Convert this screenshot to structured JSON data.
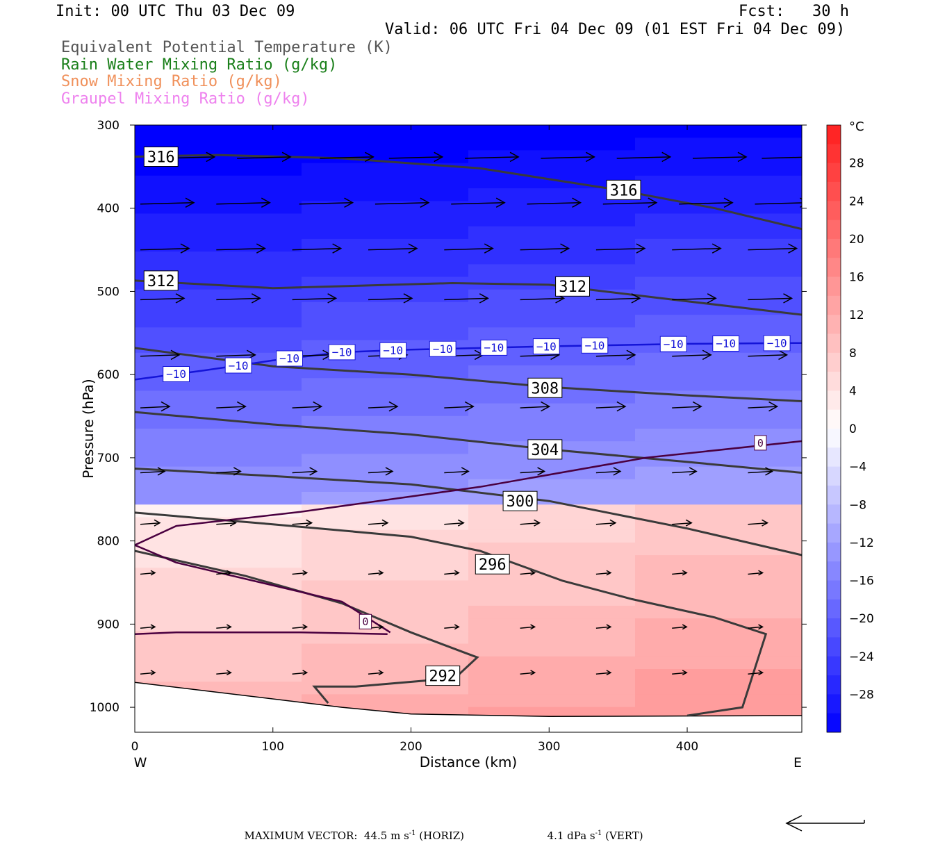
{
  "header": {
    "init": "Init: 00 UTC Thu 03 Dec 09",
    "fcst": "Fcst:   30 h",
    "valid": "Valid: 06 UTC Fri 04 Dec 09 (01 EST Fri 04 Dec 09)"
  },
  "legend": [
    {
      "label": "Equivalent Potential Temperature (K)",
      "color": "#555555"
    },
    {
      "label": "Rain Water Mixing Ratio (g/kg)",
      "color": "#1a7f1a"
    },
    {
      "label": "Snow Mixing Ratio (g/kg)",
      "color": "#f0905a"
    },
    {
      "label": "Graupel Mixing Ratio (g/kg)",
      "color": "#ee82ee"
    }
  ],
  "footer": {
    "max_vector_label": "MAXIMUM VECTOR:  44.5 m s",
    "horiz_suffix": " (HORIZ)",
    "vert_value": "4.1 dPa s",
    "vert_suffix": " (VERT)",
    "exp": "-1"
  },
  "chart_data": {
    "type": "heatmap",
    "xlabel": "Distance (km)",
    "ylabel": "Pressure (hPa)",
    "x_ticks": [
      0,
      100,
      200,
      300,
      400
    ],
    "y_ticks": [
      300,
      400,
      500,
      600,
      700,
      800,
      900,
      1000
    ],
    "xlim": [
      0,
      483
    ],
    "ylim": [
      300,
      1030
    ],
    "y_inverted": true,
    "x_end_labels": {
      "left": "W",
      "right": "E"
    },
    "colorbar": {
      "unit": "°C",
      "tick_labels": [
        "28",
        "24",
        "20",
        "16",
        "12",
        "8",
        "4",
        "0",
        "−4",
        "−8",
        "−12",
        "−16",
        "−20",
        "−24",
        "−28"
      ],
      "range": [
        -32,
        32
      ]
    },
    "theta_e_contours": [
      {
        "label": "316",
        "points": [
          [
            0,
            338
          ],
          [
            60,
            336
          ],
          [
            150,
            340
          ],
          [
            250,
            352
          ],
          [
            350,
            378
          ],
          [
            420,
            400
          ],
          [
            483,
            425
          ]
        ]
      },
      {
        "label": "312",
        "points": [
          [
            0,
            487
          ],
          [
            100,
            496
          ],
          [
            230,
            490
          ],
          [
            300,
            492
          ],
          [
            380,
            508
          ],
          [
            483,
            528
          ]
        ]
      },
      {
        "label": "308",
        "points": [
          [
            0,
            568
          ],
          [
            100,
            590
          ],
          [
            200,
            600
          ],
          [
            300,
            615
          ],
          [
            400,
            625
          ],
          [
            483,
            632
          ]
        ]
      },
      {
        "label": "304",
        "points": [
          [
            0,
            645
          ],
          [
            100,
            660
          ],
          [
            200,
            672
          ],
          [
            300,
            690
          ],
          [
            400,
            705
          ],
          [
            483,
            718
          ]
        ]
      },
      {
        "label": "300",
        "points": [
          [
            0,
            713
          ],
          [
            100,
            722
          ],
          [
            200,
            732
          ],
          [
            300,
            752
          ],
          [
            400,
            785
          ],
          [
            483,
            817
          ]
        ]
      },
      {
        "label": "296",
        "points": [
          [
            0,
            766
          ],
          [
            100,
            780
          ],
          [
            200,
            795
          ],
          [
            250,
            812
          ],
          [
            310,
            848
          ],
          [
            360,
            870
          ],
          [
            420,
            892
          ],
          [
            457,
            912
          ],
          [
            440,
            1000
          ],
          [
            400,
            1010
          ]
        ]
      },
      {
        "label": "292",
        "points": [
          [
            0,
            812
          ],
          [
            80,
            842
          ],
          [
            150,
            875
          ],
          [
            200,
            910
          ],
          [
            240,
            935
          ],
          [
            248,
            940
          ],
          [
            235,
            960
          ],
          [
            210,
            968
          ],
          [
            160,
            975
          ],
          [
            130,
            975
          ],
          [
            140,
            995
          ]
        ]
      }
    ],
    "zero_isotherm": {
      "label": "0",
      "points": [
        [
          183,
          912
        ],
        [
          120,
          910
        ],
        [
          30,
          910
        ],
        [
          0,
          912
        ]
      ],
      "points2": [
        [
          0,
          805
        ],
        [
          30,
          826
        ],
        [
          150,
          873
        ],
        [
          185,
          910
        ]
      ],
      "points3": [
        [
          0,
          805
        ],
        [
          30,
          782
        ],
        [
          120,
          765
        ],
        [
          250,
          735
        ],
        [
          370,
          700
        ],
        [
          483,
          680
        ]
      ]
    },
    "minus10_isotherm": {
      "label": "−10",
      "points": [
        [
          0,
          606
        ],
        [
          50,
          595
        ],
        [
          100,
          583
        ],
        [
          150,
          573
        ],
        [
          200,
          570
        ],
        [
          250,
          568
        ],
        [
          300,
          566
        ],
        [
          400,
          563
        ],
        [
          483,
          562
        ]
      ],
      "label_x": [
        30,
        75,
        112,
        150,
        187,
        223,
        260,
        298,
        333,
        390,
        428,
        465
      ]
    },
    "surface_line": [
      [
        0,
        970
      ],
      [
        50,
        980
      ],
      [
        150,
        1000
      ],
      [
        200,
        1008
      ],
      [
        300,
        1011
      ],
      [
        483,
        1010
      ]
    ],
    "wind_vectors_rows": [
      {
        "p": 340,
        "xs": [
          15,
          70,
          130,
          180,
          235,
          290,
          345,
          400,
          450,
          480
        ],
        "len": 55
      },
      {
        "p": 395,
        "xs": [
          0,
          55,
          115,
          170,
          225,
          280,
          335,
          390,
          445,
          480
        ],
        "len": 55
      },
      {
        "p": 450,
        "xs": [
          0,
          55,
          110,
          165,
          220,
          275,
          330,
          385,
          440
        ],
        "len": 50
      },
      {
        "p": 510,
        "xs": [
          0,
          55,
          110,
          165,
          220,
          275,
          330,
          385,
          440
        ],
        "len": 45
      },
      {
        "p": 578,
        "xs": [
          0,
          55,
          110,
          165,
          220,
          275,
          330,
          385,
          440
        ],
        "len": 40
      },
      {
        "p": 640,
        "xs": [
          0,
          55,
          110,
          165,
          220,
          275,
          330,
          385,
          440
        ],
        "len": 30
      },
      {
        "p": 718,
        "xs": [
          0,
          55,
          110,
          165,
          220,
          275,
          330,
          385,
          440
        ],
        "len": 25
      },
      {
        "p": 780,
        "xs": [
          0,
          55,
          110,
          165,
          220,
          275,
          330,
          385,
          440
        ],
        "len": 20
      },
      {
        "p": 840,
        "xs": [
          0,
          55,
          110,
          165,
          220,
          275,
          330,
          385,
          440
        ],
        "len": 15
      },
      {
        "p": 905,
        "xs": [
          0,
          55,
          110,
          165,
          220,
          275,
          330,
          385,
          440
        ],
        "len": 15
      },
      {
        "p": 960,
        "xs": [
          0,
          55,
          110,
          165,
          220,
          275,
          330,
          385,
          440
        ],
        "len": 15
      }
    ],
    "colors": {
      "cold_max": "#0000ff",
      "neutral": "#ffffff",
      "warm_max": "#ff1e1e",
      "contour": "#3a3a3a",
      "zero_line": "#4a0040",
      "minus10_line": "#1414d8"
    }
  }
}
